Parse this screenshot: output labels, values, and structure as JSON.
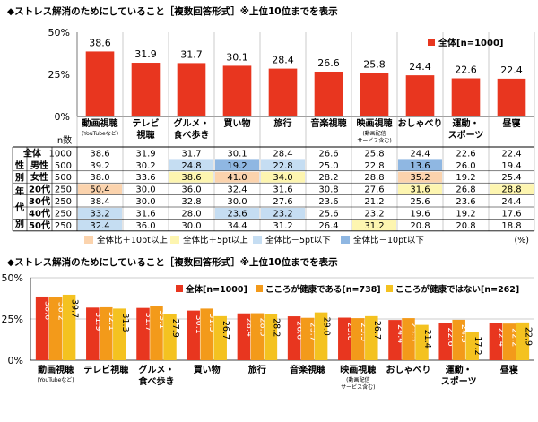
{
  "colors": {
    "red": "#e8361f",
    "orange": "#f39a1a",
    "yellow": "#f4c220",
    "olive": "#9aa02c",
    "hl_orange": "#fbd3ad",
    "hl_yellow": "#fdf5b0",
    "hl_lightblue": "#c5ddf2",
    "hl_blue": "#8fb7e2",
    "grid": "#999999",
    "sep": "#a8a8a8"
  },
  "chart_data": [
    {
      "type": "bar",
      "title": "◆ストレス解消のためにしていること［複数回答形式］※上位10位までを表示",
      "y_ticks": [
        "50%",
        "25%",
        "0%"
      ],
      "ylim": [
        0,
        50
      ],
      "categories": [
        {
          "line1": "動画視聴",
          "line2": "(YouTubeなど)",
          "line3": ""
        },
        {
          "line1": "テレビ",
          "line2": "視聴",
          "line3": ""
        },
        {
          "line1": "グルメ・",
          "line2": "食べ歩き",
          "line3": ""
        },
        {
          "line1": "買い物",
          "line2": "",
          "line3": ""
        },
        {
          "line1": "旅行",
          "line2": "",
          "line3": ""
        },
        {
          "line1": "音楽視聴",
          "line2": "",
          "line3": ""
        },
        {
          "line1": "映画視聴",
          "line2": "(動画配信",
          "line3": "サービス含む)"
        },
        {
          "line1": "おしゃべり",
          "line2": "",
          "line3": ""
        },
        {
          "line1": "運動・",
          "line2": "スポーツ",
          "line3": ""
        },
        {
          "line1": "昼寝",
          "line2": "",
          "line3": ""
        }
      ],
      "series": [
        {
          "name": "全体[n=1000]",
          "values": [
            38.6,
            31.9,
            31.7,
            30.1,
            28.4,
            26.6,
            25.8,
            24.4,
            22.6,
            22.4
          ],
          "labels": [
            "38.6",
            "31.9",
            "31.7",
            "30.1",
            "28.4",
            "26.6",
            "25.8",
            "24.4",
            "22.6",
            "22.4"
          ]
        }
      ],
      "legend": {
        "label": "全体[n=1000]"
      },
      "table": {
        "n_header": "n数",
        "groups": [
          {
            "label": "",
            "rows": [
              0
            ]
          },
          {
            "label": "性別",
            "rows": [
              1,
              2
            ]
          },
          {
            "label": "年代別",
            "rows": [
              3,
              4,
              5,
              6
            ]
          }
        ],
        "rows": [
          {
            "label": "全体",
            "n": "1000",
            "cells": [
              {
                "v": "38.6",
                "hl": ""
              },
              {
                "v": "31.9",
                "hl": ""
              },
              {
                "v": "31.7",
                "hl": ""
              },
              {
                "v": "30.1",
                "hl": ""
              },
              {
                "v": "28.4",
                "hl": ""
              },
              {
                "v": "26.6",
                "hl": ""
              },
              {
                "v": "25.8",
                "hl": ""
              },
              {
                "v": "24.4",
                "hl": ""
              },
              {
                "v": "22.6",
                "hl": ""
              },
              {
                "v": "22.4",
                "hl": ""
              }
            ]
          },
          {
            "label": "男性",
            "n": "500",
            "cells": [
              {
                "v": "39.2",
                "hl": ""
              },
              {
                "v": "30.2",
                "hl": ""
              },
              {
                "v": "24.8",
                "hl": "lb"
              },
              {
                "v": "19.2",
                "hl": "b"
              },
              {
                "v": "22.8",
                "hl": "lb"
              },
              {
                "v": "25.0",
                "hl": ""
              },
              {
                "v": "22.8",
                "hl": ""
              },
              {
                "v": "13.6",
                "hl": "b"
              },
              {
                "v": "26.0",
                "hl": ""
              },
              {
                "v": "19.4",
                "hl": ""
              }
            ]
          },
          {
            "label": "女性",
            "n": "500",
            "cells": [
              {
                "v": "38.0",
                "hl": ""
              },
              {
                "v": "33.6",
                "hl": ""
              },
              {
                "v": "38.6",
                "hl": "y"
              },
              {
                "v": "41.0",
                "hl": "o"
              },
              {
                "v": "34.0",
                "hl": "y"
              },
              {
                "v": "28.2",
                "hl": ""
              },
              {
                "v": "28.8",
                "hl": ""
              },
              {
                "v": "35.2",
                "hl": "o"
              },
              {
                "v": "19.2",
                "hl": ""
              },
              {
                "v": "25.4",
                "hl": ""
              }
            ]
          },
          {
            "label": "20代",
            "n": "250",
            "cells": [
              {
                "v": "50.4",
                "hl": "o"
              },
              {
                "v": "30.0",
                "hl": ""
              },
              {
                "v": "36.0",
                "hl": ""
              },
              {
                "v": "32.4",
                "hl": ""
              },
              {
                "v": "31.6",
                "hl": ""
              },
              {
                "v": "30.8",
                "hl": ""
              },
              {
                "v": "27.6",
                "hl": ""
              },
              {
                "v": "31.6",
                "hl": "y"
              },
              {
                "v": "26.8",
                "hl": ""
              },
              {
                "v": "28.8",
                "hl": "y"
              }
            ]
          },
          {
            "label": "30代",
            "n": "250",
            "cells": [
              {
                "v": "38.4",
                "hl": ""
              },
              {
                "v": "30.0",
                "hl": ""
              },
              {
                "v": "32.8",
                "hl": ""
              },
              {
                "v": "30.0",
                "hl": ""
              },
              {
                "v": "27.6",
                "hl": ""
              },
              {
                "v": "23.6",
                "hl": ""
              },
              {
                "v": "21.2",
                "hl": ""
              },
              {
                "v": "25.6",
                "hl": ""
              },
              {
                "v": "23.6",
                "hl": ""
              },
              {
                "v": "24.4",
                "hl": ""
              }
            ]
          },
          {
            "label": "40代",
            "n": "250",
            "cells": [
              {
                "v": "33.2",
                "hl": "lb"
              },
              {
                "v": "31.6",
                "hl": ""
              },
              {
                "v": "28.0",
                "hl": ""
              },
              {
                "v": "23.6",
                "hl": "lb"
              },
              {
                "v": "23.2",
                "hl": "lb"
              },
              {
                "v": "25.6",
                "hl": ""
              },
              {
                "v": "23.2",
                "hl": ""
              },
              {
                "v": "19.6",
                "hl": ""
              },
              {
                "v": "19.2",
                "hl": ""
              },
              {
                "v": "17.6",
                "hl": ""
              }
            ]
          },
          {
            "label": "50代",
            "n": "250",
            "cells": [
              {
                "v": "32.4",
                "hl": "lb"
              },
              {
                "v": "36.0",
                "hl": ""
              },
              {
                "v": "30.0",
                "hl": ""
              },
              {
                "v": "34.4",
                "hl": ""
              },
              {
                "v": "31.2",
                "hl": ""
              },
              {
                "v": "26.4",
                "hl": ""
              },
              {
                "v": "31.2",
                "hl": "y"
              },
              {
                "v": "20.8",
                "hl": ""
              },
              {
                "v": "20.8",
                "hl": ""
              },
              {
                "v": "18.8",
                "hl": ""
              }
            ]
          }
        ],
        "hl_legend": [
          {
            "key": "o",
            "label": "全体比＋10pt以上"
          },
          {
            "key": "y",
            "label": "全体比＋5pt以上"
          },
          {
            "key": "lb",
            "label": "全体比－5pt以下"
          },
          {
            "key": "b",
            "label": "全体比－10pt以下"
          }
        ],
        "unit": "(%)"
      }
    },
    {
      "type": "bar",
      "title": "◆ストレス解消のためにしていること［複数回答形式］※上位10位までを表示",
      "y_ticks": [
        "50%",
        "25%",
        "0%"
      ],
      "ylim": [
        0,
        50
      ],
      "categories": [
        {
          "line1": "動画視聴",
          "line2": "(YouTubeなど)",
          "line3": ""
        },
        {
          "line1": "テレビ視聴",
          "line2": "",
          "line3": ""
        },
        {
          "line1": "グルメ・",
          "line2": "食べ歩き",
          "line3": ""
        },
        {
          "line1": "買い物",
          "line2": "",
          "line3": ""
        },
        {
          "line1": "旅行",
          "line2": "",
          "line3": ""
        },
        {
          "line1": "音楽視聴",
          "line2": "",
          "line3": ""
        },
        {
          "line1": "映画視聴",
          "line2": "(動画配信",
          "line3": "サービス含む)"
        },
        {
          "line1": "おしゃべり",
          "line2": "",
          "line3": ""
        },
        {
          "line1": "運動・",
          "line2": "スポーツ",
          "line3": ""
        },
        {
          "line1": "昼寝",
          "line2": "",
          "line3": ""
        }
      ],
      "series": [
        {
          "name": "全体[n=1000]",
          "color_key": "red",
          "values": [
            38.6,
            31.9,
            31.7,
            30.1,
            28.4,
            26.6,
            25.8,
            24.4,
            22.6,
            22.4
          ],
          "labels": [
            "38.6",
            "31.9",
            "31.7",
            "30.1",
            "28.4",
            "26.6",
            "25.8",
            "24.4",
            "22.6",
            "22.4"
          ]
        },
        {
          "name": "こころが健康である[n=738]",
          "color_key": "orange",
          "values": [
            38.2,
            32.1,
            33.1,
            31.3,
            28.5,
            25.7,
            25.5,
            25.5,
            24.5,
            22.2
          ],
          "labels": [
            "38.2",
            "32.1",
            "33.1",
            "31.3",
            "28.5",
            "25.7",
            "25.5",
            "25.5",
            "24.5",
            "22.2"
          ]
        },
        {
          "name": "こころが健康ではない[n=262]",
          "color_key": "yellow",
          "values": [
            39.7,
            31.3,
            27.9,
            26.7,
            28.2,
            29.0,
            26.7,
            21.4,
            17.2,
            22.9
          ],
          "labels": [
            "39.7",
            "31.3",
            "27.9",
            "26.7",
            "28.2",
            "29.0",
            "26.7",
            "21.4",
            "17.2",
            "22.9"
          ]
        }
      ]
    }
  ]
}
